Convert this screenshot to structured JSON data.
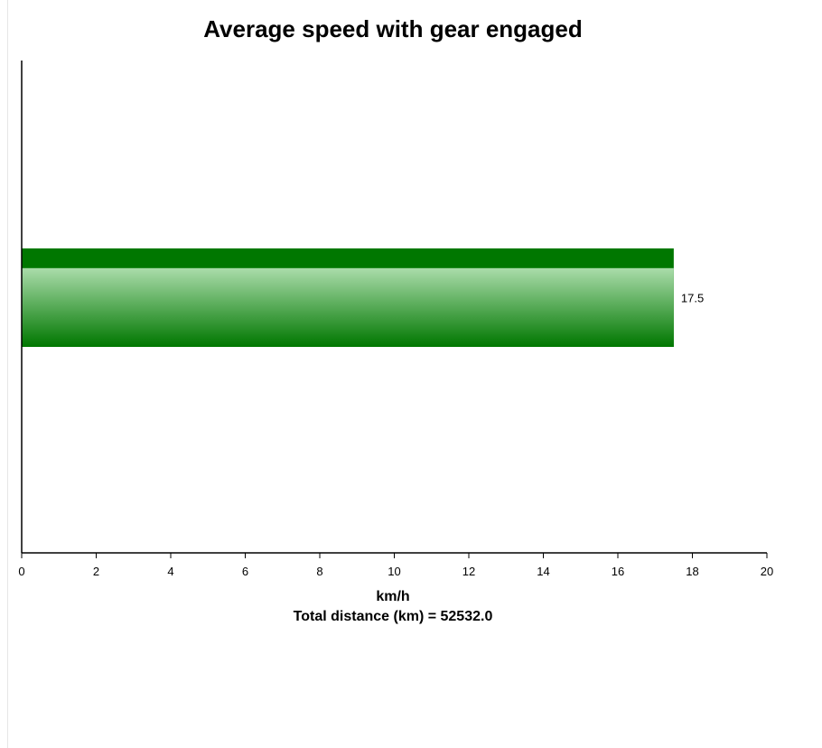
{
  "chart_data": {
    "type": "bar",
    "orientation": "horizontal",
    "title": "Average speed with gear engaged",
    "xlabel": "km/h",
    "note": "Total distance (km) = 52532.0",
    "categories": [
      ""
    ],
    "values": [
      17.5
    ],
    "value_labels": [
      "17.5"
    ],
    "xlim": [
      0,
      20
    ],
    "xticks": [
      0,
      2,
      4,
      6,
      8,
      10,
      12,
      14,
      16,
      18,
      20
    ],
    "grid": false,
    "legend": "none",
    "colors": {
      "bar_dark": "#007700",
      "bar_light": "#aadcaa"
    }
  }
}
